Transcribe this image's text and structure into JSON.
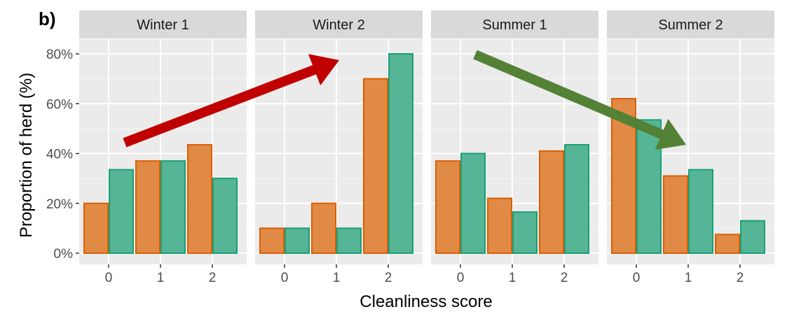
{
  "panel_tag": "b)",
  "chart_data": {
    "type": "bar",
    "facets": [
      "Winter 1",
      "Winter 2",
      "Summer 1",
      "Summer 2"
    ],
    "categories": [
      "0",
      "1",
      "2"
    ],
    "xlabel": "Cleanliness score",
    "ylabel": "Proportion of herd (%)",
    "ylim": [
      0,
      80
    ],
    "yticks": [
      "0%",
      "20%",
      "40%",
      "60%",
      "80%"
    ],
    "grid": true,
    "legend": "none",
    "series": [
      {
        "color": "#D95F02",
        "fill": "#E08A45",
        "values": {
          "Winter 1": [
            20,
            37,
            43.5
          ],
          "Winter 2": [
            10,
            20,
            70
          ],
          "Summer 1": [
            37,
            22,
            41
          ],
          "Summer 2": [
            62,
            31,
            7.5
          ]
        }
      },
      {
        "color": "#1B9E77",
        "fill": "#55B596",
        "values": {
          "Winter 1": [
            33.5,
            37,
            30
          ],
          "Winter 2": [
            10,
            10,
            80
          ],
          "Summer 1": [
            40,
            16.5,
            43.5
          ],
          "Summer 2": [
            53.5,
            33.5,
            13
          ]
        }
      }
    ],
    "annotations": [
      {
        "type": "arrow",
        "color": "#C00000",
        "direction": "up-right",
        "from_facet": "Winter 1",
        "to_facet": "Winter 2"
      },
      {
        "type": "arrow",
        "color": "#538135",
        "direction": "down-right",
        "from_facet": "Summer 1",
        "to_facet": "Summer 2"
      }
    ]
  }
}
